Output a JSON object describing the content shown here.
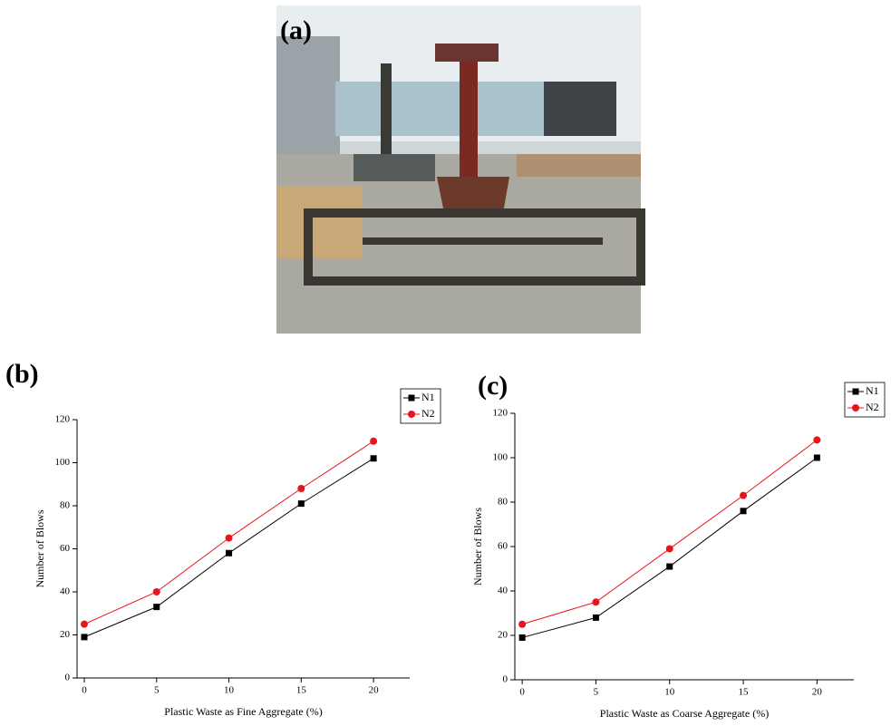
{
  "photo": {
    "label": "(a)"
  },
  "chart_data": [
    {
      "type": "line",
      "label": "(b)",
      "x_label": "Plastic Waste as Fine Aggregate (%)",
      "y_label": "Number of Blows",
      "x": [
        0,
        5,
        10,
        15,
        20
      ],
      "series": [
        {
          "name": "N1",
          "color": "#000000",
          "marker": "square",
          "values": [
            19,
            33,
            58,
            81,
            102
          ]
        },
        {
          "name": "N2",
          "color": "#e8141c",
          "marker": "circle",
          "values": [
            25,
            40,
            65,
            88,
            110
          ]
        }
      ],
      "xlim": [
        -0.5,
        22.5
      ],
      "xticks": [
        0,
        5,
        10,
        15,
        20
      ],
      "ylim": [
        0,
        120
      ],
      "yticks": [
        0,
        20,
        40,
        60,
        80,
        100,
        120
      ],
      "legend": "top-right"
    },
    {
      "type": "line",
      "label": "(c)",
      "x_label": "Plastic Waste as Coarse Aggregate (%)",
      "y_label": "Number of Blows",
      "x": [
        0,
        5,
        10,
        15,
        20
      ],
      "series": [
        {
          "name": "N1",
          "color": "#000000",
          "marker": "square",
          "values": [
            19,
            28,
            51,
            76,
            100
          ]
        },
        {
          "name": "N2",
          "color": "#e8141c",
          "marker": "circle",
          "values": [
            25,
            35,
            59,
            83,
            108
          ]
        }
      ],
      "xlim": [
        -0.5,
        22.5
      ],
      "xticks": [
        0,
        5,
        10,
        15,
        20
      ],
      "ylim": [
        0,
        120
      ],
      "yticks": [
        0,
        20,
        40,
        60,
        80,
        100,
        120
      ],
      "legend": "top-right"
    }
  ]
}
